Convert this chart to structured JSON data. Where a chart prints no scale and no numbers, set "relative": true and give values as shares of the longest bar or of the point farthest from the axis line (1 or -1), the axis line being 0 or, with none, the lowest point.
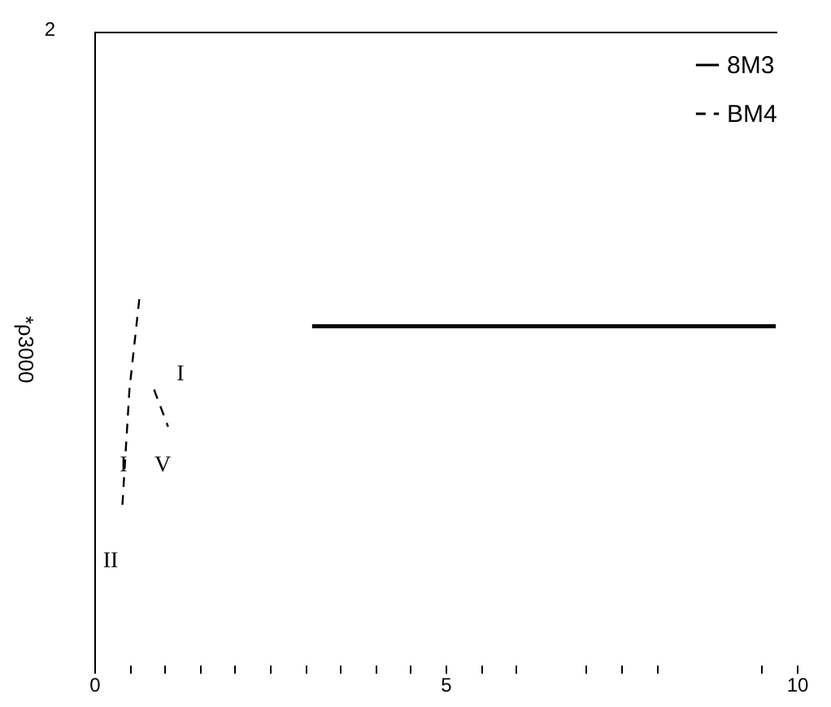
{
  "chart_data": {
    "type": "line",
    "relative": true,
    "ylabel": "*ρ3000",
    "xlim": [
      0,
      10
    ],
    "xticks": [
      0,
      5,
      10,
      {
        "value": 0.5,
        "label": null
      },
      {
        "value": 1,
        "label": null
      },
      {
        "value": 1.5,
        "label": null
      },
      {
        "value": 2,
        "label": null
      },
      {
        "value": 2.5,
        "label": null
      },
      {
        "value": 3,
        "label": null
      },
      {
        "value": 3.5,
        "label": null
      },
      {
        "value": 4,
        "label": null
      },
      {
        "value": 4.5,
        "label": null
      },
      {
        "value": 5.5,
        "label": null
      },
      {
        "value": 6,
        "label": null
      },
      {
        "value": 7,
        "label": null
      },
      {
        "value": 7.5,
        "label": null
      },
      {
        "value": 8,
        "label": null
      },
      {
        "value": 9.5,
        "label": null
      }
    ],
    "series": [
      {
        "name": "8M3",
        "color": "#000000",
        "line_style": "solid",
        "x": [
          3.1,
          9.7
        ],
        "values": [
          0.91,
          0.91
        ]
      },
      {
        "name": "BM4",
        "color": "#000000",
        "line_style": "dashed",
        "x": [
          0.4,
          0.5,
          0.65
        ],
        "values": [
          0.43,
          0.74,
          1.0
        ]
      },
      {
        "color": "#000000",
        "line_style": "dashed",
        "x": [
          0.85,
          1.05
        ],
        "values": [
          0.74,
          0.64
        ]
      }
    ],
    "legend": "top right",
    "annotations": [
      "2",
      "I",
      "I",
      "II",
      "V"
    ]
  }
}
